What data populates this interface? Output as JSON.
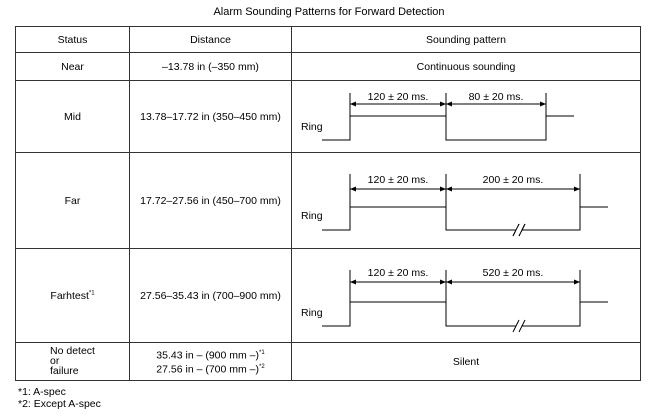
{
  "title": "Alarm Sounding Patterns for Forward Detection",
  "headers": {
    "status": "Status",
    "distance": "Distance",
    "pattern": "Sounding pattern"
  },
  "rows": [
    {
      "status": "Near",
      "distance": "–13.78 in (–350 mm)",
      "pattern": "Continuous sounding"
    },
    {
      "status": "Mid",
      "distance": "13.78–17.72 in (350–450 mm)",
      "diagram": {
        "ring_label": "Ring",
        "on_label": "120 ± 20 ms.",
        "off_label": "80 ± 20 ms."
      }
    },
    {
      "status": "Far",
      "distance": "17.72–27.56 in (450–700 mm)",
      "diagram": {
        "ring_label": "Ring",
        "on_label": "120 ± 20 ms.",
        "off_label": "200 ± 20 ms."
      }
    },
    {
      "status": "Farhtest",
      "status_sup": "*1",
      "distance": "27.56–35.43 in (700–900 mm)",
      "diagram": {
        "ring_label": "Ring",
        "on_label": "120 ± 20 ms.",
        "off_label": "520 ± 20 ms."
      }
    },
    {
      "status_lines": [
        "No detect",
        "or",
        "failure"
      ],
      "distance_lines": [
        {
          "text": "35.43 in – (900 mm –)",
          "sup": "*1"
        },
        {
          "text": "27.56 in – (700 mm –)",
          "sup": "*2"
        }
      ],
      "pattern": "Silent"
    }
  ],
  "footnotes": [
    "*1: A-spec",
    "*2: Except A-spec"
  ]
}
